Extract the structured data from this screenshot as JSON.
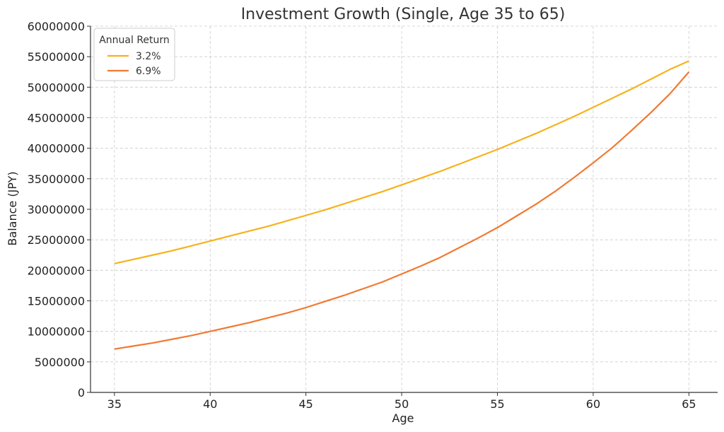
{
  "chart_data": {
    "type": "line",
    "title": "Investment Growth (Single, Age 35 to 65)",
    "xlabel": "Age",
    "ylabel": "Balance (JPY)",
    "xlim": [
      33.75,
      66.5
    ],
    "ylim": [
      0,
      60000000
    ],
    "x_ticks": [
      35,
      40,
      45,
      50,
      55,
      60,
      65
    ],
    "y_ticks": [
      0,
      5000000,
      10000000,
      15000000,
      20000000,
      25000000,
      30000000,
      35000000,
      40000000,
      45000000,
      50000000,
      55000000,
      60000000
    ],
    "grid": true,
    "legend": {
      "title": "Annual Return",
      "position": "top-left"
    },
    "x": [
      35,
      36,
      37,
      38,
      39,
      40,
      41,
      42,
      43,
      44,
      45,
      46,
      47,
      48,
      49,
      50,
      51,
      52,
      53,
      54,
      55,
      56,
      57,
      58,
      59,
      60,
      61,
      62,
      63,
      64,
      65
    ],
    "series": [
      {
        "name": "3.2%",
        "color": "#f7b21b",
        "values": [
          21100000,
          21800000,
          22500000,
          23200000,
          24000000,
          24800000,
          25600000,
          26400000,
          27200000,
          28100000,
          29000000,
          29900000,
          30900000,
          31900000,
          32900000,
          34000000,
          35100000,
          36200000,
          37400000,
          38600000,
          39800000,
          41100000,
          42400000,
          43800000,
          45200000,
          46700000,
          48200000,
          49700000,
          51300000,
          52900000,
          54300000
        ]
      },
      {
        "name": "6.9%",
        "color": "#f07a32",
        "values": [
          7100000,
          7600000,
          8100000,
          8700000,
          9300000,
          10000000,
          10700000,
          11400000,
          12200000,
          13000000,
          13900000,
          14900000,
          15900000,
          17000000,
          18100000,
          19400000,
          20700000,
          22100000,
          23700000,
          25300000,
          27000000,
          28900000,
          30800000,
          32900000,
          35200000,
          37600000,
          40100000,
          42900000,
          45800000,
          48900000,
          52500000
        ]
      }
    ]
  }
}
